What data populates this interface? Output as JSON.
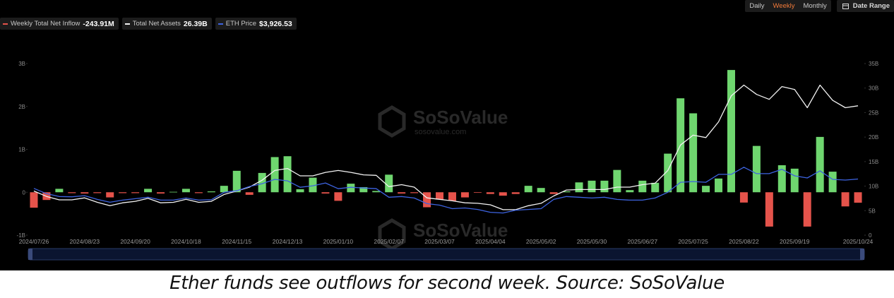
{
  "chart_data": {
    "type": "combo",
    "categories": [
      "2024/07/26",
      null,
      null,
      null,
      "2024/08/23",
      null,
      null,
      null,
      "2024/09/20",
      null,
      null,
      null,
      "2024/10/18",
      null,
      null,
      null,
      "2024/11/15",
      null,
      null,
      null,
      "2024/12/13",
      null,
      null,
      null,
      "2025/01/10",
      null,
      null,
      null,
      "2025/02/07",
      null,
      null,
      null,
      "2025/03/07",
      null,
      null,
      null,
      "2025/04/04",
      null,
      null,
      null,
      "2025/05/02",
      null,
      null,
      null,
      "2025/05/30",
      null,
      null,
      null,
      "2025/06/27",
      null,
      null,
      null,
      "2025/07/25",
      null,
      null,
      null,
      "2025/08/22",
      null,
      null,
      null,
      "2025/09/19",
      null,
      null,
      null,
      null,
      "2025/10/24"
    ],
    "series": [
      {
        "name": "Weekly Total Net Inflow",
        "type": "bar",
        "color": "#6fd66f",
        "negative_color": "#e5534b",
        "values": [
          -0.36,
          -0.18,
          0.08,
          -0.02,
          -0.03,
          -0.02,
          -0.12,
          -0.02,
          -0.02,
          0.08,
          -0.03,
          0.01,
          0.08,
          -0.02,
          0.02,
          0.15,
          0.5,
          -0.06,
          0.45,
          0.82,
          0.84,
          0.07,
          0.34,
          -0.03,
          -0.2,
          0.2,
          0.12,
          0.03,
          0.41,
          -0.03,
          -0.02,
          -0.35,
          -0.17,
          -0.2,
          -0.12,
          -0.01,
          -0.04,
          -0.08,
          -0.04,
          0.15,
          0.1,
          -0.04,
          0.02,
          0.23,
          0.27,
          0.27,
          0.52,
          0.05,
          0.27,
          0.22,
          0.9,
          2.19,
          1.84,
          0.15,
          0.32,
          2.85,
          -0.24,
          1.08,
          -0.8,
          0.63,
          0.55,
          -0.8,
          1.29,
          0.48,
          -0.33,
          -0.24391
        ]
      },
      {
        "name": "Total Net Assets",
        "type": "line",
        "axis": "y2",
        "color": "#f2f2f2",
        "values": [
          9.0,
          7.9,
          7.2,
          7.2,
          7.6,
          6.7,
          6.0,
          6.6,
          6.9,
          7.5,
          6.6,
          6.7,
          7.3,
          6.7,
          6.9,
          8.3,
          9.0,
          9.8,
          11.2,
          13.2,
          13.6,
          12.1,
          12.1,
          12.8,
          13.2,
          12.8,
          12.3,
          12.2,
          9.9,
          10.3,
          9.8,
          7.6,
          7.3,
          7.0,
          6.6,
          6.5,
          6.2,
          5.2,
          5.2,
          6.0,
          6.5,
          8.0,
          9.2,
          9.3,
          9.3,
          9.3,
          9.8,
          9.8,
          10.3,
          10.6,
          13.2,
          18.4,
          20.4,
          19.9,
          23.1,
          28.4,
          30.6,
          28.7,
          27.7,
          30.3,
          29.7,
          26.0,
          30.6,
          27.5,
          26.0,
          26.39
        ]
      },
      {
        "name": "ETH Price",
        "type": "line",
        "axis": "y3",
        "color": "#3d63e0",
        "values": [
          3270,
          2900,
          2700,
          2680,
          2760,
          2500,
          2300,
          2450,
          2550,
          2650,
          2450,
          2450,
          2600,
          2450,
          2480,
          3000,
          3100,
          3400,
          3600,
          3900,
          3800,
          3350,
          3450,
          3650,
          3250,
          3350,
          3300,
          3250,
          2650,
          2700,
          2600,
          2200,
          2100,
          1850,
          1900,
          1800,
          1600,
          1550,
          1750,
          1800,
          1850,
          2500,
          2700,
          2650,
          2600,
          2650,
          2500,
          2450,
          2450,
          2600,
          3000,
          3700,
          3750,
          3700,
          4250,
          4250,
          4750,
          4300,
          4300,
          4600,
          4150,
          4000,
          4500,
          3900,
          3850,
          3926.53
        ]
      }
    ],
    "legend_values": [
      "-243.91M",
      "26.39B",
      "$3,926.53"
    ],
    "ylim": [
      -1,
      3
    ],
    "yticks": [
      {
        "value": -1,
        "label": "-1B"
      },
      0,
      {
        "value": 1,
        "label": "1B"
      },
      {
        "value": 2,
        "label": "2B"
      },
      {
        "value": 3,
        "label": "3B"
      }
    ],
    "y2lim": [
      0,
      35
    ],
    "y2ticks": [
      0,
      {
        "value": 5,
        "label": "5B"
      },
      {
        "value": 10,
        "label": "10B"
      },
      {
        "value": 15,
        "label": "15B"
      },
      {
        "value": 20,
        "label": "20B"
      },
      {
        "value": 25,
        "label": "25B"
      },
      {
        "value": 30,
        "label": "30B"
      },
      {
        "value": 35,
        "label": "35B"
      }
    ],
    "y3lim": [
      0,
      12000
    ]
  },
  "controls": {
    "periods": [
      "Daily",
      "Weekly",
      "Monthly"
    ],
    "active": 1,
    "date_range": "Date Range"
  },
  "watermark": {
    "brand": "SoSoValue",
    "site": "sosovalue.com"
  },
  "caption": "Ether funds see outflows for second week. Source: SoSoValue"
}
